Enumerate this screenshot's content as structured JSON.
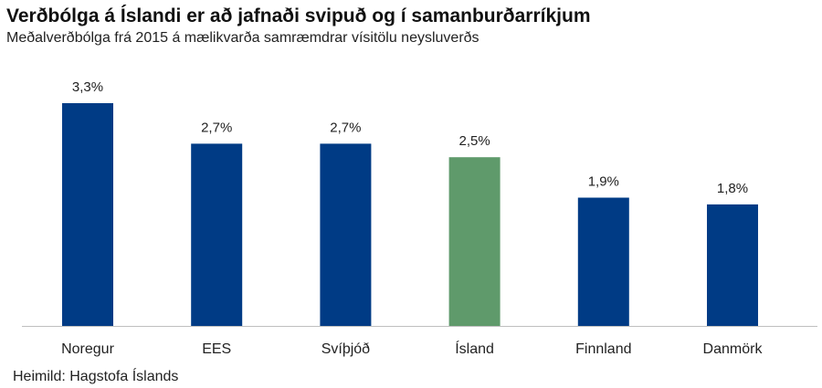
{
  "title": "Verðbólga á Íslandi er að jafnaði svipuð og í samanburðarríkjum",
  "subtitle": "Meðalverðbólga frá 2015 á mælikvarða samræmdrar vísitölu neysluverðs",
  "source": "Heimild: Hagstofa Íslands",
  "colors": {
    "default_bar": "#003b85",
    "highlight_bar": "#5f9a6b",
    "axis": "#bfbfbf"
  },
  "chart_data": {
    "type": "bar",
    "categories": [
      "Noregur",
      "EES",
      "Svíþjóð",
      "Ísland",
      "Finnland",
      "Danmörk"
    ],
    "values": [
      3.3,
      2.7,
      2.7,
      2.5,
      1.9,
      1.8
    ],
    "value_labels": [
      "3,3%",
      "2,7%",
      "2,7%",
      "2,5%",
      "1,9%",
      "1,8%"
    ],
    "highlight": "Ísland",
    "ylim": [
      0,
      3.3
    ],
    "grid": false,
    "legend": "none"
  }
}
